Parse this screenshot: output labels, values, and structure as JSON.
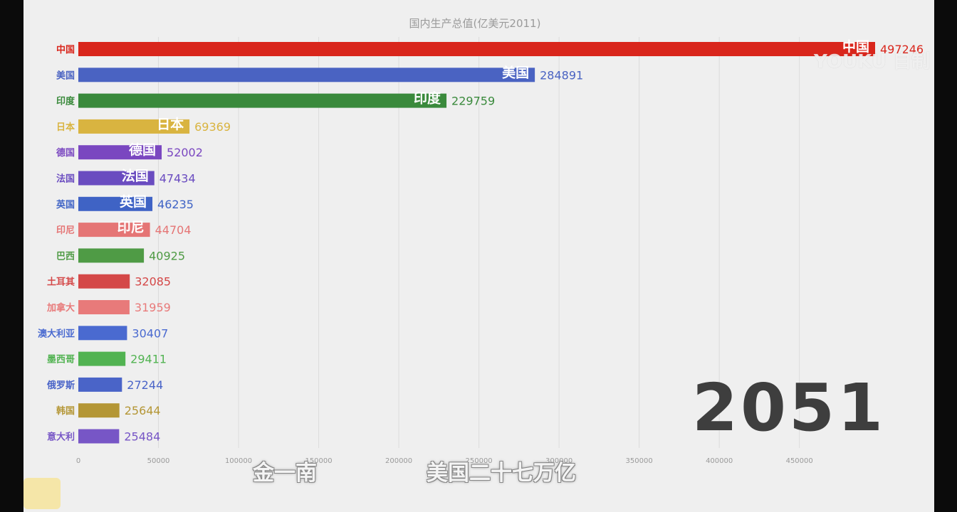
{
  "watermark": "YOUKU 自制",
  "year": "2051",
  "subtitles": {
    "left": "金一南",
    "main": "美国二十七万亿"
  },
  "chart_data": {
    "type": "bar",
    "orientation": "horizontal",
    "title": "国内生产总值(亿美元2011)",
    "xlim": [
      0,
      497246
    ],
    "grid": true,
    "x_ticks": [
      "0",
      "50000",
      "100000",
      "150000",
      "200000",
      "250000",
      "300000",
      "350000",
      "400000",
      "450000"
    ],
    "x_tick_values": [
      0,
      50000,
      100000,
      150000,
      200000,
      250000,
      300000,
      350000,
      400000,
      450000
    ],
    "categories": [
      "中国",
      "美国",
      "印度",
      "日本",
      "德国",
      "法国",
      "英国",
      "印尼",
      "巴西",
      "土耳其",
      "加拿大",
      "澳大利亚",
      "墨西哥",
      "俄罗斯",
      "韩国",
      "意大利"
    ],
    "values": [
      497246,
      284891,
      229759,
      69369,
      52002,
      47434,
      46235,
      44704,
      40925,
      32085,
      31959,
      30407,
      29411,
      27244,
      25644,
      25484
    ],
    "colors": [
      "#d9261c",
      "#4a63c2",
      "#3a8a3c",
      "#d9b440",
      "#7a47c0",
      "#6a4cc0",
      "#3f63c5",
      "#e57575",
      "#4f9b45",
      "#d44848",
      "#e87a7a",
      "#4a6ad0",
      "#52b352",
      "#4a64c8",
      "#b49635",
      "#7756c6"
    ]
  }
}
